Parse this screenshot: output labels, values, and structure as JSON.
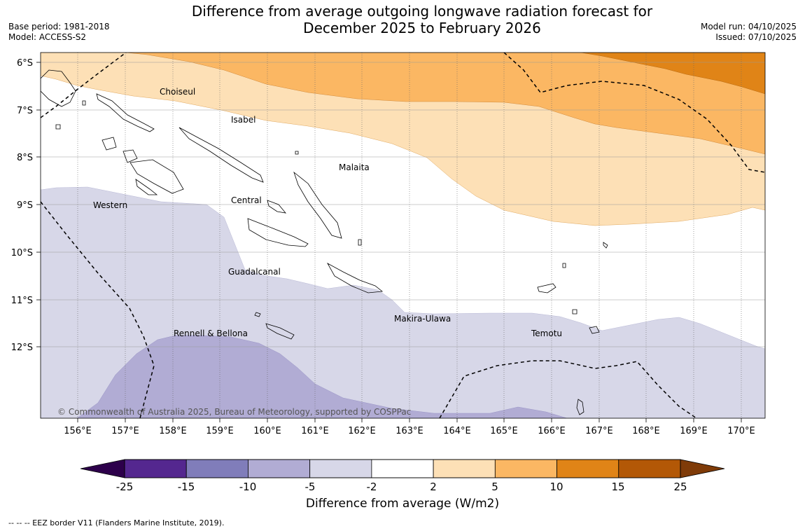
{
  "title": {
    "line1": "Difference from average outgoing longwave radiation forecast for",
    "line2": "December 2025 to February 2026"
  },
  "info_left": {
    "base_period": "Base period: 1981-2018",
    "model": "Model: ACCESS-S2"
  },
  "info_right": {
    "model_run": "Model run: 04/10/2025",
    "issued": "Issued: 07/10/2025"
  },
  "map": {
    "lon_labels": [
      "156°E",
      "157°E",
      "158°E",
      "159°E",
      "160°E",
      "161°E",
      "162°E",
      "163°E",
      "164°E",
      "165°E",
      "166°E",
      "167°E",
      "168°E",
      "169°E",
      "170°E"
    ],
    "lat_labels": [
      "6°S",
      "7°S",
      "8°S",
      "9°S",
      "10°S",
      "11°S",
      "12°S"
    ],
    "regions": [
      "Choiseul",
      "Isabel",
      "Malaita",
      "Western",
      "Central",
      "Guadalcanal",
      "Makira-Ulawa",
      "Rennell & Bellona",
      "Temotu"
    ],
    "copyright": "© Commonwealth of Australia 2025, Bureau of Meteorology, supported by COSPPac"
  },
  "colorbar": {
    "ticks": [
      "-25",
      "-15",
      "-10",
      "-5",
      "-2",
      "2",
      "5",
      "10",
      "15",
      "25"
    ],
    "colors": [
      "#54278f",
      "#807dba",
      "#b1acd4",
      "#d7d7e8",
      "#ffffff",
      "#fde0b6",
      "#fbb763",
      "#e08417",
      "#b35806"
    ],
    "extend_low": "#2d004b",
    "extend_high": "#7f3b08",
    "label": "Difference from average (W/m2)"
  },
  "footnote": "--  --  -- EEZ border V11 (Flanders Marine Institute, 2019)."
}
